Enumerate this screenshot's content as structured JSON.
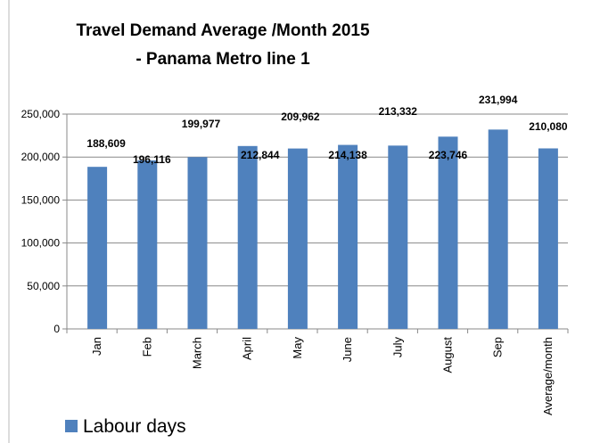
{
  "chart_data": {
    "type": "bar",
    "title": "Travel Demand Average /Month 2015 - Panama Metro line 1",
    "categories": [
      "Jan",
      "Feb",
      "March",
      "April",
      "May",
      "June",
      "July",
      "August",
      "Sep",
      "Average/month"
    ],
    "series": [
      {
        "name": "Labour days",
        "color": "#4f81bd",
        "values": [
          188609,
          196116,
          199977,
          212844,
          209962,
          214138,
          213332,
          223746,
          231994,
          210080
        ],
        "value_labels": [
          "188,609",
          "196,116",
          "199,977",
          "212,844",
          "209,962",
          "214,138",
          "213,332",
          "223,746",
          "231,994",
          "210,080"
        ]
      }
    ],
    "ylim": [
      0,
      250000
    ],
    "yticks": [
      0,
      {
        "value": 50000,
        "label": "50,000"
      },
      {
        "value": 100000,
        "label": "100,000"
      },
      {
        "value": 150000,
        "label": "150,000"
      },
      {
        "value": 200000,
        "label": "200,000"
      },
      {
        "value": 250000,
        "label": "250,000"
      }
    ],
    "grid": true,
    "legend": "bottom-left"
  }
}
